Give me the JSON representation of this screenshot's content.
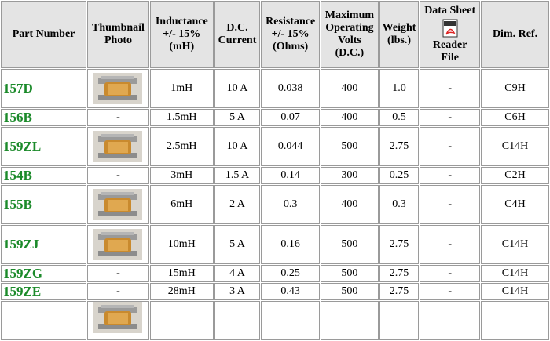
{
  "table": {
    "header": [
      "Part Number",
      "Thumbnail\nPhoto",
      "Inductance\n+/- 15%\n(mH)",
      "D.C.\nCurrent",
      "Resistance\n+/- 15%\n(Ohms)",
      "Maximum\nOperating\nVolts\n(D.C.)",
      "Weight\n(lbs.)",
      "Data Sheet",
      "Dim. Ref."
    ],
    "datasheet_caption": "Reader\nFile",
    "rows": [
      {
        "part": "157D",
        "inductance": "1mH",
        "current": "10 A",
        "resistance": "0.038",
        "volts": "400",
        "weight": "1.0",
        "sheet": "-",
        "dim": "C9H"
      },
      {
        "part": "156B",
        "photo": "-",
        "inductance": "1.5mH",
        "current": "5 A",
        "resistance": "0.07",
        "volts": "400",
        "weight": "0.5",
        "sheet": "-",
        "dim": "C6H"
      },
      {
        "part": "159ZL",
        "inductance": "2.5mH",
        "current": "10 A",
        "resistance": "0.044",
        "volts": "500",
        "weight": "2.75",
        "sheet": "-",
        "dim": "C14H"
      },
      {
        "part": "154B",
        "photo": "-",
        "inductance": "3mH",
        "current": "1.5 A",
        "resistance": "0.14",
        "volts": "300",
        "weight": "0.25",
        "sheet": "-",
        "dim": "C2H"
      },
      {
        "part": "155B",
        "inductance": "6mH",
        "current": "2 A",
        "resistance": "0.3",
        "volts": "400",
        "weight": "0.3",
        "sheet": "-",
        "dim": "C4H"
      },
      {
        "part": "159ZJ",
        "inductance": "10mH",
        "current": "5 A",
        "resistance": "0.16",
        "volts": "500",
        "weight": "2.75",
        "sheet": "-",
        "dim": "C14H"
      },
      {
        "part": "159ZG",
        "photo": "-",
        "inductance": "15mH",
        "current": "4 A",
        "resistance": "0.25",
        "volts": "500",
        "weight": "2.75",
        "sheet": "-",
        "dim": "C14H"
      },
      {
        "part": "159ZE",
        "photo": "-",
        "inductance": "28mH",
        "current": "3 A",
        "resistance": "0.43",
        "volts": "500",
        "weight": "2.75",
        "sheet": "-",
        "dim": "C14H"
      }
    ]
  }
}
